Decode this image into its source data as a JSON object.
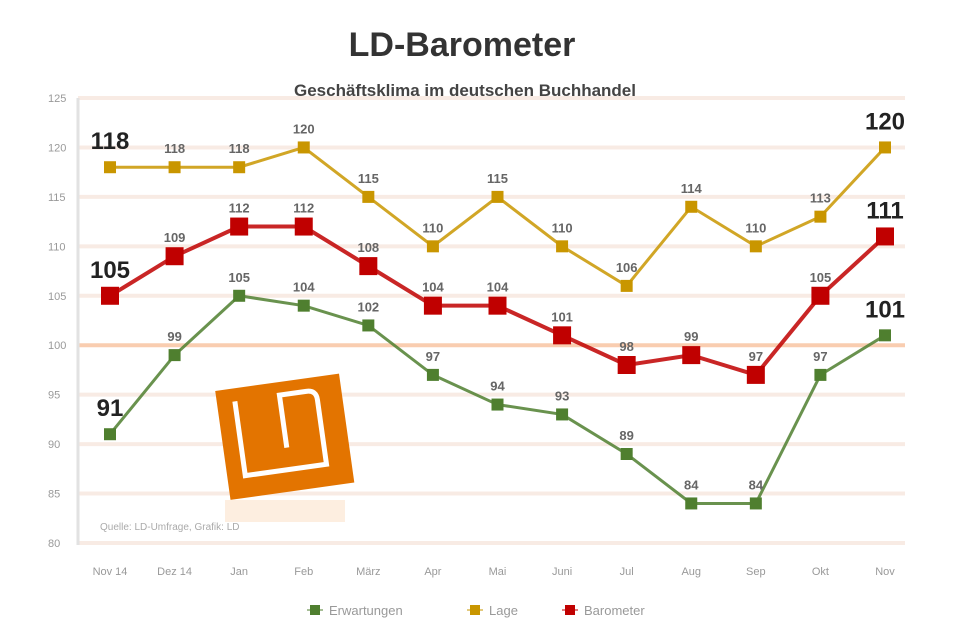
{
  "chart_data": {
    "type": "line",
    "title": "LD-Barometer",
    "subtitle": "Geschäftsklima im deutschen Buchhandel",
    "categories": [
      "Nov 14",
      "Dez 14",
      "Jan",
      "Feb",
      "März",
      "Apr",
      "Mai",
      "Juni",
      "Jul",
      "Aug",
      "Sep",
      "Okt",
      "Nov"
    ],
    "ylim": [
      80,
      125
    ],
    "yticks": [
      80,
      85,
      90,
      95,
      100,
      105,
      110,
      115,
      120,
      125
    ],
    "reference_line": 100,
    "grid": true,
    "legend_position": "bottom",
    "series": [
      {
        "name": "Erwartungen",
        "color": "#4f7f2f",
        "values": [
          91,
          99,
          105,
          104,
          102,
          97,
          94,
          93,
          89,
          84,
          84,
          97,
          101
        ]
      },
      {
        "name": "Lage",
        "color": "#c99600",
        "values": [
          118,
          118,
          118,
          120,
          115,
          110,
          115,
          110,
          106,
          114,
          110,
          113,
          120
        ]
      },
      {
        "name": "Barometer",
        "color": "#c00000",
        "values": [
          105,
          109,
          112,
          112,
          108,
          104,
          104,
          101,
          98,
          99,
          97,
          105,
          111
        ]
      }
    ],
    "source": "Quelle: LD-Umfrage, Grafik: LD",
    "logo_text": "LD"
  }
}
